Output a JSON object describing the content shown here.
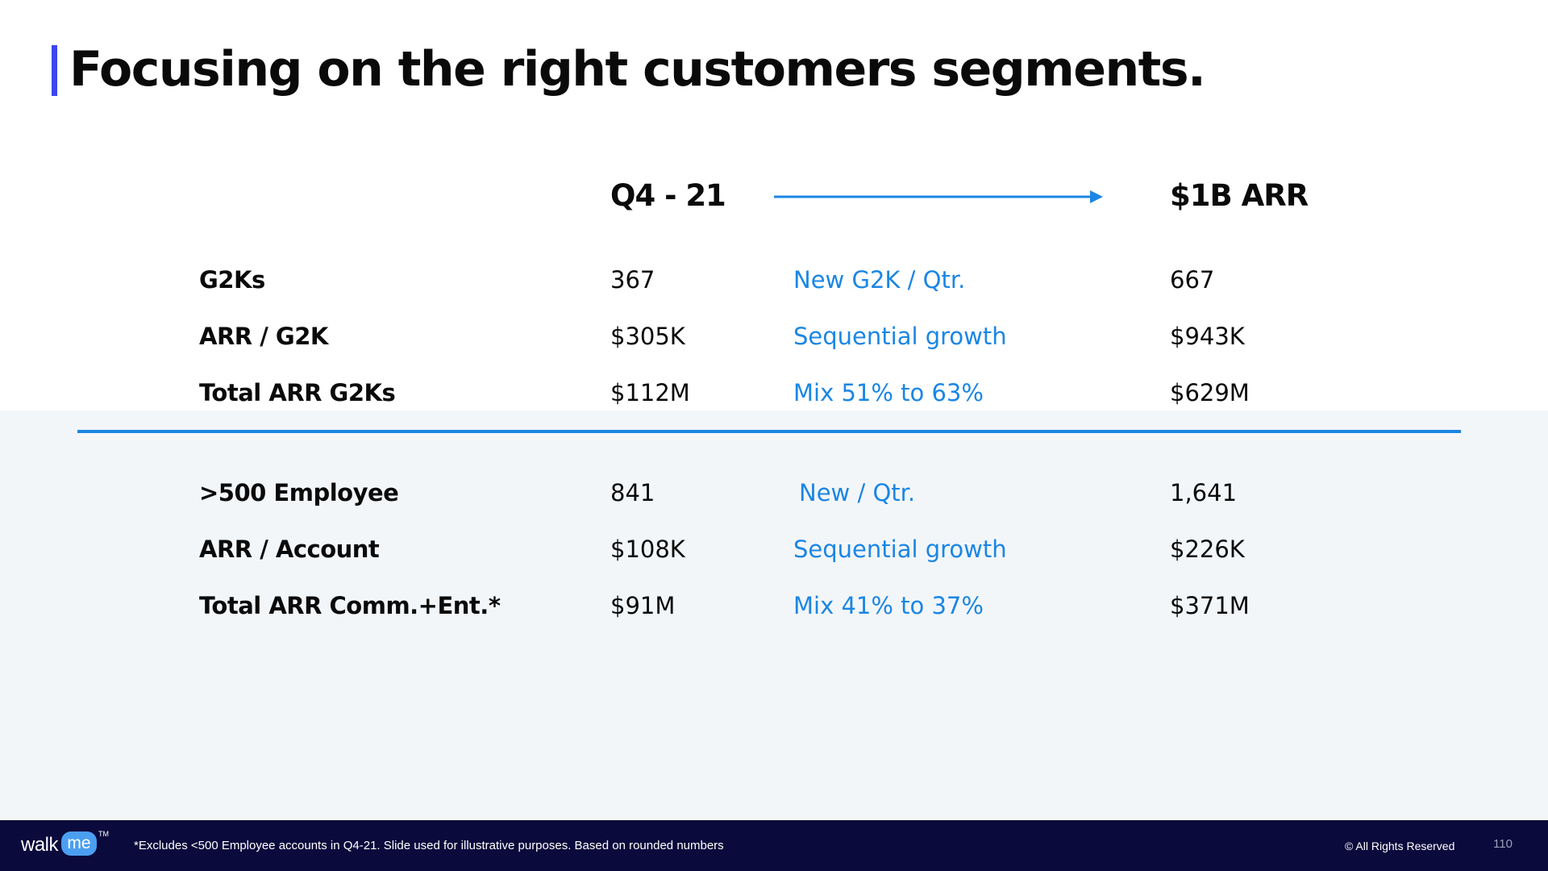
{
  "slide": {
    "title": "Focusing on the right customers segments.",
    "accent_color": "#3b46f1",
    "highlight_color": "#1b86e4"
  },
  "columns": {
    "from_label": "Q4 - 21",
    "to_label": "$1B ARR",
    "arrow_icon": "arrow-right-icon"
  },
  "group_g2k": {
    "rows": [
      {
        "label": "G2Ks",
        "q4": "367",
        "driver": "New G2K / Qtr.",
        "target": "667"
      },
      {
        "label": "ARR / G2K",
        "q4": "$305K",
        "driver": "Sequential growth",
        "target": "$943K"
      },
      {
        "label": "Total ARR G2Ks",
        "q4": "$112M",
        "driver": "Mix 51% to 63%",
        "target": "$629M"
      }
    ]
  },
  "group_comm_ent": {
    "rows": [
      {
        "label": ">500 Employee",
        "q4": "841",
        "driver": "New / Qtr.",
        "target": "1,641"
      },
      {
        "label": "ARR / Account",
        "q4": "$108K",
        "driver": "Sequential growth",
        "target": "$226K"
      },
      {
        "label": "Total ARR Comm.+Ent.*",
        "q4": "$91M",
        "driver": "Mix 41% to 37%",
        "target": "$371M"
      }
    ]
  },
  "footer": {
    "logo_walk": "walk",
    "logo_me": "me",
    "logo_tm": "TM",
    "footnote": "*Excludes <500 Employee accounts in Q4-21. Slide used for illustrative purposes. Based on rounded numbers",
    "rights": "© All Rights Reserved",
    "page_number": "110"
  }
}
